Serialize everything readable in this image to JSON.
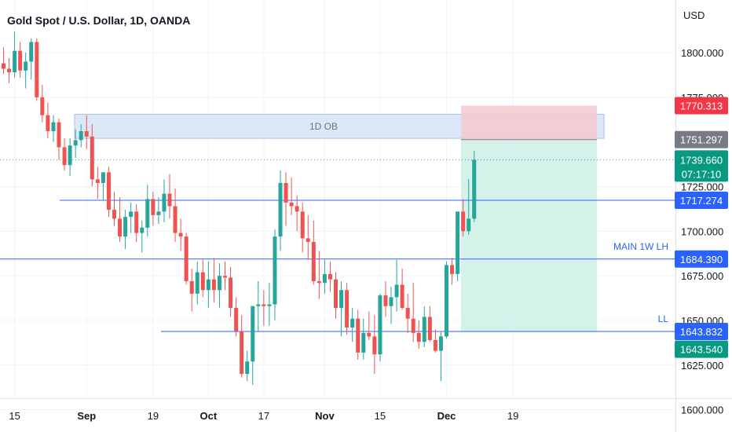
{
  "chart_data": {
    "type": "candlestick",
    "title": "Gold Spot / U.S. Dollar, 1D, OANDA",
    "currency": "USD",
    "ylim": [
      1587.5,
      1829.5
    ],
    "y_ticks": [
      "1600.000",
      "1625.000",
      "1650.000",
      "1675.000",
      "1700.000",
      "1725.000",
      "1775.000",
      "1800.000"
    ],
    "x_ticks": [
      {
        "label": "15",
        "date": "2022-08-15",
        "bold": false
      },
      {
        "label": "Sep",
        "date": "2022-09-01",
        "bold": true
      },
      {
        "label": "19",
        "date": "2022-09-19",
        "bold": false
      },
      {
        "label": "Oct",
        "date": "2022-10-03",
        "bold": true
      },
      {
        "label": "17",
        "date": "2022-10-17",
        "bold": false
      },
      {
        "label": "Nov",
        "date": "2022-11-01",
        "bold": true
      },
      {
        "label": "15",
        "date": "2022-11-15",
        "bold": false
      },
      {
        "label": "Dec",
        "date": "2022-12-01",
        "bold": true
      },
      {
        "label": "19",
        "date": "2022-12-19",
        "bold": false
      }
    ],
    "colors": {
      "up": "#26a69a",
      "down": "#ef5350",
      "line": "#2962ff",
      "ob_fill": "#dce8f8",
      "ob_border": "#a9c0e6",
      "stop_fill": "#f4c9d0",
      "target_fill": "#cdeee6"
    },
    "ohlc": [
      [
        1794,
        1803,
        1788,
        1791
      ],
      [
        1791,
        1797,
        1783,
        1789
      ],
      [
        1789,
        1812,
        1786,
        1801
      ],
      [
        1801,
        1806,
        1786,
        1790
      ],
      [
        1790,
        1800,
        1780,
        1795
      ],
      [
        1795,
        1808,
        1785,
        1806
      ],
      [
        1806,
        1808,
        1773,
        1775
      ],
      [
        1775,
        1782,
        1761,
        1765
      ],
      [
        1765,
        1772,
        1752,
        1756
      ],
      [
        1756,
        1765,
        1750,
        1761
      ],
      [
        1761,
        1763,
        1740,
        1747
      ],
      [
        1747,
        1752,
        1734,
        1737
      ],
      [
        1737,
        1752,
        1731,
        1748
      ],
      [
        1748,
        1757,
        1741,
        1751
      ],
      [
        1751,
        1760,
        1747,
        1756
      ],
      [
        1756,
        1765,
        1746,
        1753
      ],
      [
        1753,
        1760,
        1725,
        1729
      ],
      [
        1729,
        1736,
        1718,
        1727
      ],
      [
        1727,
        1733,
        1717,
        1733
      ],
      [
        1733,
        1736,
        1708,
        1712
      ],
      [
        1712,
        1722,
        1703,
        1707
      ],
      [
        1707,
        1719,
        1694,
        1697
      ],
      [
        1697,
        1712,
        1690,
        1708
      ],
      [
        1708,
        1716,
        1699,
        1711
      ],
      [
        1711,
        1715,
        1694,
        1699
      ],
      [
        1699,
        1706,
        1688,
        1702
      ],
      [
        1702,
        1726,
        1697,
        1718
      ],
      [
        1718,
        1722,
        1703,
        1709
      ],
      [
        1709,
        1719,
        1704,
        1711
      ],
      [
        1711,
        1729,
        1705,
        1721
      ],
      [
        1721,
        1732,
        1707,
        1714
      ],
      [
        1714,
        1724,
        1694,
        1699
      ],
      [
        1699,
        1707,
        1689,
        1697
      ],
      [
        1697,
        1699,
        1670,
        1672
      ],
      [
        1672,
        1679,
        1655,
        1665
      ],
      [
        1665,
        1683,
        1659,
        1677
      ],
      [
        1677,
        1684,
        1663,
        1667
      ],
      [
        1667,
        1683,
        1657,
        1673
      ],
      [
        1673,
        1685,
        1660,
        1667
      ],
      [
        1667,
        1682,
        1657,
        1675
      ],
      [
        1675,
        1683,
        1667,
        1674
      ],
      [
        1674,
        1680,
        1652,
        1657
      ],
      [
        1657,
        1663,
        1641,
        1644
      ],
      [
        1644,
        1653,
        1618,
        1620
      ],
      [
        1620,
        1633,
        1616,
        1627
      ],
      [
        1627,
        1656,
        1614,
        1658
      ],
      [
        1658,
        1672,
        1644,
        1659
      ],
      [
        1659,
        1667,
        1647,
        1658
      ],
      [
        1658,
        1671,
        1647,
        1659
      ],
      [
        1659,
        1701,
        1650,
        1697
      ],
      [
        1697,
        1734,
        1689,
        1727
      ],
      [
        1727,
        1733,
        1703,
        1716
      ],
      [
        1716,
        1730,
        1709,
        1714
      ],
      [
        1714,
        1720,
        1700,
        1711
      ],
      [
        1711,
        1716,
        1688,
        1696
      ],
      [
        1696,
        1709,
        1684,
        1694
      ],
      [
        1694,
        1706,
        1670,
        1672
      ],
      [
        1672,
        1689,
        1662,
        1671
      ],
      [
        1671,
        1684,
        1665,
        1676
      ],
      [
        1676,
        1683,
        1666,
        1673
      ],
      [
        1673,
        1677,
        1651,
        1657
      ],
      [
        1657,
        1672,
        1641,
        1667
      ],
      [
        1667,
        1671,
        1642,
        1646
      ],
      [
        1646,
        1657,
        1638,
        1651
      ],
      [
        1651,
        1656,
        1628,
        1632
      ],
      [
        1632,
        1651,
        1628,
        1643
      ],
      [
        1643,
        1655,
        1639,
        1641
      ],
      [
        1641,
        1653,
        1620,
        1631
      ],
      [
        1631,
        1665,
        1627,
        1664
      ],
      [
        1664,
        1672,
        1652,
        1658
      ],
      [
        1658,
        1669,
        1648,
        1663
      ],
      [
        1663,
        1684,
        1655,
        1670
      ],
      [
        1670,
        1679,
        1656,
        1657
      ],
      [
        1657,
        1665,
        1643,
        1651
      ],
      [
        1651,
        1671,
        1638,
        1643
      ],
      [
        1643,
        1650,
        1634,
        1638
      ],
      [
        1638,
        1658,
        1635,
        1652
      ],
      [
        1652,
        1658,
        1638,
        1639
      ],
      [
        1639,
        1645,
        1632,
        1633
      ],
      [
        1633,
        1644,
        1616,
        1641
      ],
      [
        1641,
        1683,
        1640,
        1681
      ],
      [
        1681,
        1685,
        1670,
        1676
      ],
      [
        1676,
        1711,
        1672,
        1711
      ],
      [
        1711,
        1718,
        1697,
        1700
      ],
      [
        1700,
        1729,
        1698,
        1707
      ],
      [
        1707,
        1745,
        1705,
        1740
      ]
    ],
    "levels": [
      {
        "price": 1717.274,
        "label": "1717.274",
        "text": ""
      },
      {
        "price": 1684.39,
        "label": "1684.390",
        "text": "MAIN 1W LH"
      },
      {
        "price": 1643.832,
        "label": "1643.832",
        "text": "LL"
      }
    ],
    "order_block": {
      "text": "1D OB",
      "top": 1765.5,
      "bottom": 1752.0
    },
    "position": {
      "stop": 1770.313,
      "entry": 1751.297,
      "target": 1643.54
    },
    "price_labels": {
      "stop": "1770.313",
      "entry": "1751.297",
      "last": "1739.660",
      "countdown": "07:17:10",
      "target": "1643.540"
    }
  }
}
